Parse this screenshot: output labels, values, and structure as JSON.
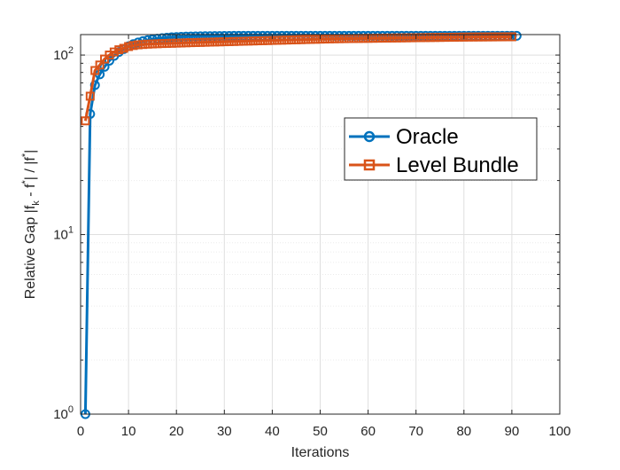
{
  "chart_data": {
    "type": "line",
    "title": "",
    "xlabel": "Iterations",
    "ylabel": {
      "parts": [
        {
          "text": "Relative Gap |f",
          "sup": "",
          "sub": ""
        },
        {
          "text": "",
          "sup": "",
          "sub": "k"
        },
        {
          "text": " - f",
          "sup": "",
          "sub": ""
        },
        {
          "text": "",
          "sup": "*",
          "sub": ""
        },
        {
          "text": "| / |f",
          "sup": "",
          "sub": ""
        },
        {
          "text": "",
          "sup": "*",
          "sub": ""
        },
        {
          "text": "|",
          "sup": "",
          "sub": ""
        }
      ]
    },
    "xlim": [
      0,
      100
    ],
    "ylim": [
      1,
      130
    ],
    "yscale": "log",
    "grid": true,
    "minor_grid": true,
    "x_ticks": [
      0,
      10,
      20,
      30,
      40,
      50,
      60,
      70,
      80,
      90,
      100
    ],
    "x_tick_labels": [
      "0",
      "10",
      "20",
      "30",
      "40",
      "50",
      "60",
      "70",
      "80",
      "90",
      "100"
    ],
    "y_ticks": [
      {
        "value": 1,
        "base": "10",
        "exp": "0"
      },
      {
        "value": 10,
        "base": "10",
        "exp": "1"
      },
      {
        "value": 100,
        "base": "10",
        "exp": "2"
      }
    ],
    "legend": {
      "position": "right",
      "entries": [
        "Oracle",
        "Level Bundle"
      ]
    },
    "series": [
      {
        "name": "Oracle",
        "color": "#0072BD",
        "marker": "circle",
        "x": [
          1,
          2,
          3,
          4,
          5,
          6,
          7,
          8,
          9,
          10,
          11,
          12,
          13,
          14,
          15,
          16,
          17,
          18,
          19,
          20,
          21,
          22,
          23,
          24,
          25,
          26,
          27,
          28,
          29,
          30,
          31,
          32,
          33,
          34,
          35,
          36,
          37,
          38,
          39,
          40,
          41,
          42,
          43,
          44,
          45,
          46,
          47,
          48,
          49,
          50,
          51,
          52,
          53,
          54,
          55,
          56,
          57,
          58,
          59,
          60,
          61,
          62,
          63,
          64,
          65,
          66,
          67,
          68,
          69,
          70,
          71,
          72,
          73,
          74,
          75,
          76,
          77,
          78,
          79,
          80,
          81,
          82,
          83,
          84,
          85,
          86,
          87,
          88,
          89,
          90,
          91
        ],
        "y": [
          1.0,
          47.0,
          68.0,
          78.0,
          86.0,
          93.0,
          99.0,
          104.0,
          108.0,
          112.0,
          115.0,
          117.5,
          119.5,
          121.0,
          122.3,
          123.4,
          124.3,
          125.0,
          125.6,
          126.0,
          126.4,
          126.7,
          126.9,
          127.1,
          127.3,
          127.4,
          127.5,
          127.6,
          127.7,
          127.8,
          127.8,
          127.9,
          127.9,
          128.0,
          128.0,
          128.0,
          128.0,
          128.0,
          128.0,
          128.0,
          128.0,
          128.0,
          128.0,
          128.0,
          128.0,
          128.0,
          128.0,
          128.0,
          128.0,
          128.0,
          128.0,
          128.0,
          128.0,
          128.0,
          128.0,
          128.0,
          128.0,
          128.0,
          128.0,
          128.0,
          128.0,
          128.0,
          128.0,
          128.0,
          128.0,
          128.0,
          128.0,
          128.0,
          128.0,
          128.0,
          128.0,
          128.0,
          128.0,
          128.0,
          128.0,
          128.0,
          128.0,
          128.0,
          128.0,
          128.0,
          128.0,
          128.0,
          128.0,
          128.0,
          128.0,
          128.0,
          128.0,
          128.0,
          128.0,
          128.0,
          128.0
        ]
      },
      {
        "name": "Level Bundle",
        "color": "#D95319",
        "marker": "square",
        "x": [
          1,
          2,
          3,
          4,
          5,
          6,
          7,
          8,
          9,
          10,
          11,
          12,
          13,
          14,
          15,
          16,
          17,
          18,
          19,
          20,
          21,
          22,
          23,
          24,
          25,
          26,
          27,
          28,
          29,
          30,
          31,
          32,
          33,
          34,
          35,
          36,
          37,
          38,
          39,
          40,
          41,
          42,
          43,
          44,
          45,
          46,
          47,
          48,
          49,
          50,
          51,
          52,
          53,
          54,
          55,
          56,
          57,
          58,
          59,
          60,
          61,
          62,
          63,
          64,
          65,
          66,
          67,
          68,
          69,
          70,
          71,
          72,
          73,
          74,
          75,
          76,
          77,
          78,
          79,
          80,
          81,
          82,
          83,
          84,
          85,
          86,
          87,
          88,
          89,
          90
        ],
        "y": [
          43.0,
          59.0,
          82.0,
          88.0,
          95.0,
          100.0,
          104.0,
          107.0,
          109.0,
          111.5,
          113.0,
          114.0,
          114.5,
          115.0,
          115.3,
          115.6,
          115.9,
          116.1,
          116.3,
          116.5,
          116.7,
          117.0,
          117.2,
          117.4,
          117.6,
          117.8,
          118.0,
          118.2,
          118.4,
          118.6,
          118.8,
          119.0,
          119.2,
          119.4,
          119.6,
          119.8,
          120.0,
          120.2,
          120.4,
          120.6,
          120.8,
          121.0,
          121.2,
          121.4,
          121.6,
          121.8,
          122.0,
          122.2,
          122.4,
          122.6,
          122.8,
          123.0,
          123.2,
          123.3,
          123.4,
          123.5,
          123.6,
          123.7,
          123.8,
          123.9,
          124.0,
          124.1,
          124.2,
          124.3,
          124.4,
          124.5,
          124.6,
          124.7,
          124.8,
          124.9,
          125.0,
          125.1,
          125.2,
          125.3,
          125.4,
          125.5,
          125.6,
          125.7,
          125.8,
          125.9,
          126.0,
          126.0,
          126.1,
          126.1,
          126.2,
          126.2,
          126.3,
          126.3,
          126.4,
          126.4
        ]
      }
    ]
  }
}
